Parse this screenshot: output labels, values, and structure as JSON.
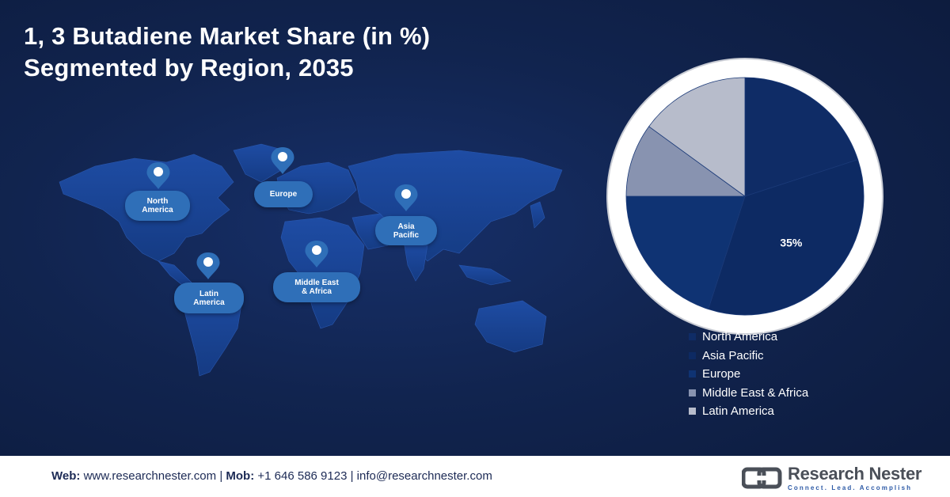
{
  "title": {
    "line1": "1, 3 Butadiene Market Share (in %)",
    "line2": "Segmented by Region, 2035"
  },
  "map": {
    "regions": [
      {
        "key": "north_america",
        "label_lines": [
          "North",
          "America"
        ]
      },
      {
        "key": "europe",
        "label_lines": [
          "Europe"
        ]
      },
      {
        "key": "asia_pacific",
        "label_lines": [
          "Asia",
          "Pacific"
        ]
      },
      {
        "key": "latin_america",
        "label_lines": [
          "Latin",
          "America"
        ]
      },
      {
        "key": "mea",
        "label_lines": [
          "Middle East",
          "& Africa"
        ]
      }
    ],
    "land_color": "#1d4aa0",
    "pin_color": "#2f6fb8"
  },
  "chart_data": {
    "type": "pie",
    "title": "1, 3 Butadiene Market Share (in %) Segmented by Region, 2035",
    "legend_position": "bottom-right",
    "start_angle_deg": 0,
    "slices": [
      {
        "name": "North America",
        "value": 20,
        "color": "#0f2c66",
        "label": ""
      },
      {
        "name": "Asia Pacific",
        "value": 35,
        "color": "#0d2a63",
        "label": "35%"
      },
      {
        "name": "Europe",
        "value": 20,
        "color": "#0f3373",
        "label": ""
      },
      {
        "name": "Middle East & Africa",
        "value": 10,
        "color": "#8893b0",
        "label": ""
      },
      {
        "name": "Latin America",
        "value": 15,
        "color": "#b7bccb",
        "label": ""
      }
    ],
    "legend": [
      {
        "label": "North America",
        "color": "#0f2c66"
      },
      {
        "label": "Asia Pacific",
        "color": "#0d2a63"
      },
      {
        "label": "Europe",
        "color": "#0f3373"
      },
      {
        "label": "Middle East & Africa",
        "color": "#8893b0"
      },
      {
        "label": "Latin America",
        "color": "#b7bccb"
      }
    ]
  },
  "footer": {
    "web_label": "Web:",
    "web_value": "www.researchnester.com",
    "mob_label": "Mob:",
    "mob_value": "+1 646 586 9123",
    "email": "info@researchnester.com",
    "separator": "|",
    "brand_name": "Research Nester",
    "brand_tagline": "Connect. Lead. Accomplish"
  }
}
